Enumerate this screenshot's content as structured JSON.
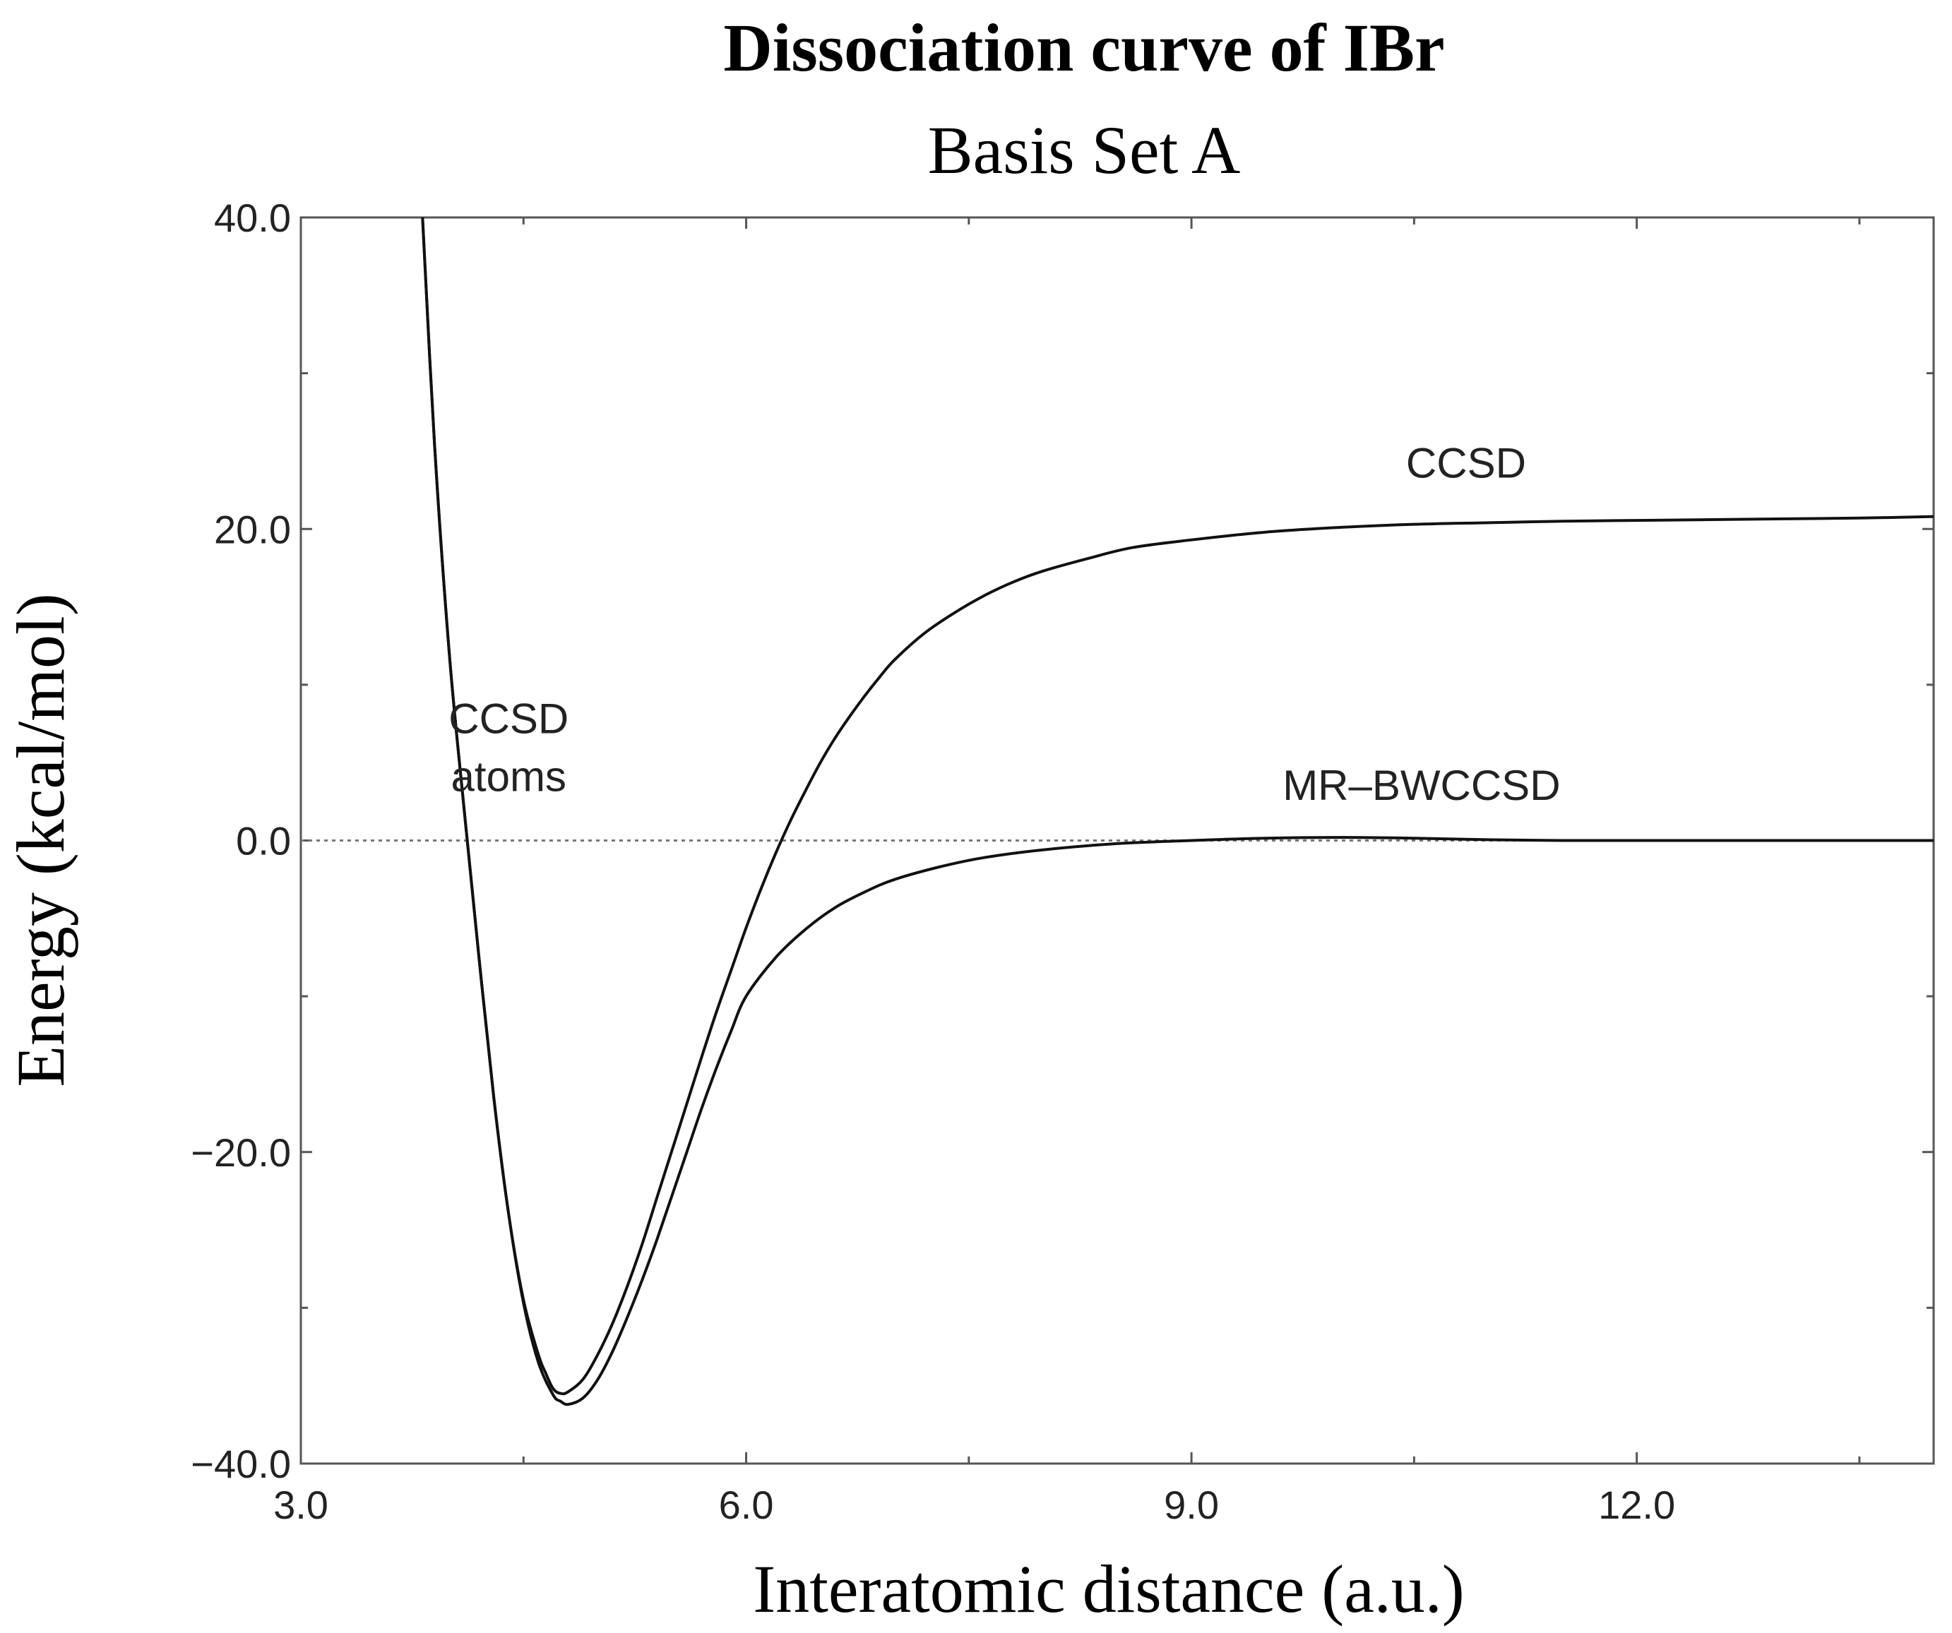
{
  "chart_data": {
    "type": "line",
    "title": "Dissociation curve of IBr",
    "subtitle": "Basis Set A",
    "xlabel": "Interatomic distance (a.u.)",
    "ylabel": "Energy (kcal/mol)",
    "xlim": [
      3.0,
      14.0
    ],
    "ylim": [
      -40.0,
      40.0
    ],
    "x_ticks": [
      3.0,
      6.0,
      9.0,
      12.0
    ],
    "x_tick_labels": [
      "3.0",
      "6.0",
      "9.0",
      "12.0"
    ],
    "y_ticks": [
      -40.0,
      -20.0,
      0.0,
      20.0,
      40.0
    ],
    "y_tick_labels": [
      "−40.0",
      "−20.0",
      "0.0",
      "20.0",
      "40.0"
    ],
    "reference_line": {
      "y": 0.0,
      "style": "dotted"
    },
    "series": [
      {
        "name": "CCSD",
        "x": [
          3.82,
          3.9,
          4.0,
          4.1,
          4.2,
          4.3,
          4.4,
          4.5,
          4.6,
          4.65,
          4.7,
          4.75,
          4.8,
          4.9,
          5.0,
          5.1,
          5.2,
          5.3,
          5.4,
          5.5,
          5.6,
          5.7,
          5.8,
          5.9,
          6.0,
          6.1,
          6.2,
          6.3,
          6.4,
          6.5,
          6.6,
          6.7,
          6.8,
          6.9,
          7.0,
          7.2,
          7.4,
          7.6,
          7.8,
          8.0,
          8.3,
          8.6,
          9.0,
          9.5,
          10.0,
          10.5,
          11.0,
          11.5,
          12.0,
          12.5,
          13.0,
          13.5,
          14.0
        ],
        "y": [
          40.0,
          25.5,
          12.0,
          2.0,
          -7.5,
          -16.5,
          -24.0,
          -29.5,
          -33.0,
          -34.2,
          -35.2,
          -35.5,
          -35.4,
          -34.6,
          -33.0,
          -31.0,
          -28.6,
          -25.9,
          -22.9,
          -19.9,
          -16.9,
          -13.9,
          -11.0,
          -8.3,
          -5.6,
          -3.1,
          -0.8,
          1.3,
          3.2,
          5.0,
          6.6,
          8.0,
          9.3,
          10.5,
          11.6,
          13.3,
          14.6,
          15.7,
          16.6,
          17.3,
          18.1,
          18.8,
          19.3,
          19.8,
          20.1,
          20.3,
          20.4,
          20.5,
          20.55,
          20.6,
          20.65,
          20.7,
          20.8
        ]
      },
      {
        "name": "MR-BWCCSD",
        "x": [
          3.82,
          3.9,
          4.0,
          4.1,
          4.2,
          4.3,
          4.4,
          4.5,
          4.6,
          4.7,
          4.75,
          4.8,
          4.9,
          5.0,
          5.1,
          5.2,
          5.3,
          5.4,
          5.5,
          5.6,
          5.7,
          5.8,
          5.9,
          6.0,
          6.2,
          6.4,
          6.6,
          6.8,
          7.0,
          7.3,
          7.6,
          8.0,
          8.5,
          9.0,
          9.5,
          10.0,
          10.5,
          11.0,
          11.5,
          12.0,
          12.5,
          13.0,
          13.5,
          14.0
        ],
        "y": [
          40.0,
          25.5,
          12.0,
          2.0,
          -7.5,
          -16.5,
          -24.0,
          -29.7,
          -33.5,
          -35.6,
          -36.0,
          -36.2,
          -35.8,
          -34.6,
          -32.8,
          -30.6,
          -28.2,
          -25.6,
          -22.8,
          -20.0,
          -17.2,
          -14.6,
          -12.2,
          -10.0,
          -7.5,
          -5.7,
          -4.3,
          -3.3,
          -2.5,
          -1.7,
          -1.1,
          -0.6,
          -0.2,
          0.0,
          0.15,
          0.2,
          0.15,
          0.05,
          0.0,
          0.0,
          0.0,
          0.0,
          0.0,
          0.0
        ]
      }
    ],
    "annotations": [
      {
        "id": "ccsd-upper",
        "lines": [
          "CCSD"
        ],
        "x": 10.85,
        "y": 23.3
      },
      {
        "id": "mr-bwccsd",
        "lines": [
          "MR–BWCCSD"
        ],
        "x": 10.55,
        "y": 2.6
      },
      {
        "id": "ccsd-atoms",
        "lines": [
          "CCSD",
          "atoms"
        ],
        "x": 4.4,
        "y": 6.9
      }
    ]
  }
}
